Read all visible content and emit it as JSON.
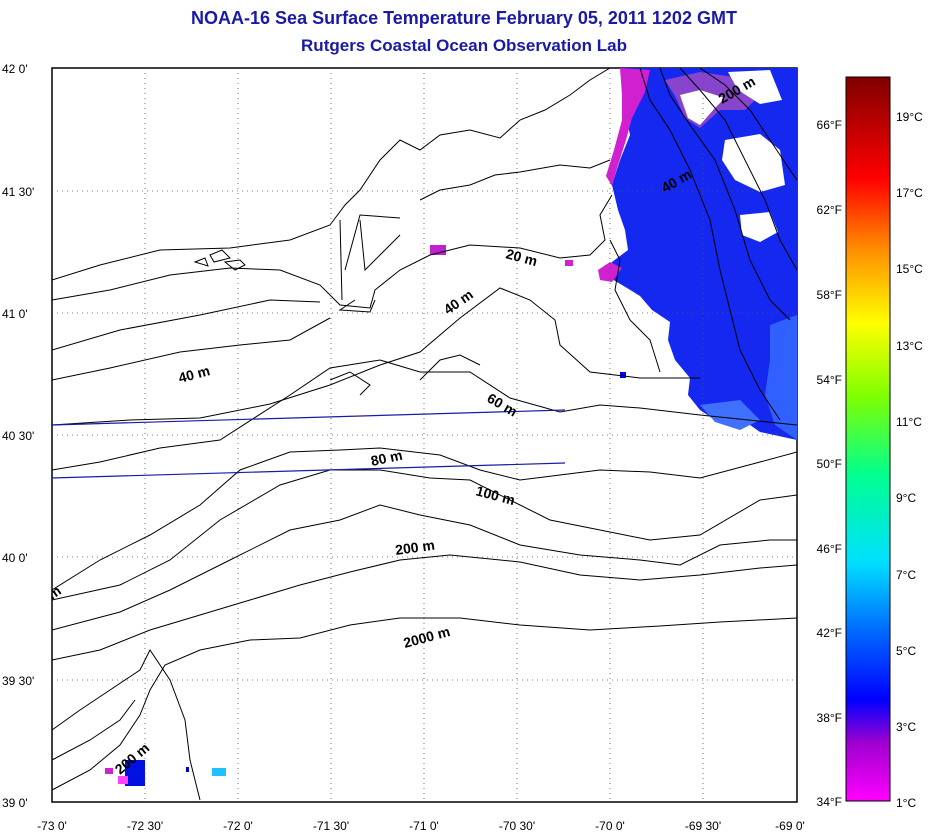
{
  "title_line1": "NOAA-16 Sea Surface Temperature February 05, 2011 1202 GMT",
  "title_line2": "Rutgers Coastal Ocean Observation Lab",
  "map": {
    "lat_labels": [
      "42 0'",
      "41 30'",
      "41 0'",
      "40 30'",
      "40 0'",
      "39 30'",
      "39 0'"
    ],
    "lon_labels": [
      "-73 0'",
      "-72 30'",
      "-72 0'",
      "-71 30'",
      "-71 0'",
      "-70 30'",
      "-70 0'",
      "-69 30'",
      "-69 0'"
    ],
    "depth_labels": [
      "200 m",
      "40 m",
      "20 m",
      "40 m",
      "40 m",
      "60 m",
      "80 m",
      "100 m",
      "200 m",
      "2000 m",
      "200 m",
      "m"
    ]
  },
  "colorbar": {
    "celsius_labels": [
      "19°C",
      "17°C",
      "15°C",
      "13°C",
      "11°C",
      "9°C",
      "7°C",
      "5°C",
      "3°C",
      "1°C"
    ],
    "fahrenheit_labels": [
      "66°F",
      "62°F",
      "58°F",
      "54°F",
      "50°F",
      "46°F",
      "42°F",
      "38°F",
      "34°F"
    ],
    "colors": [
      "#800000",
      "#ff0000",
      "#ff8000",
      "#ffff00",
      "#80ff00",
      "#00ff80",
      "#00ffff",
      "#0080ff",
      "#0000ff",
      "#800080",
      "#ff00ff"
    ]
  }
}
